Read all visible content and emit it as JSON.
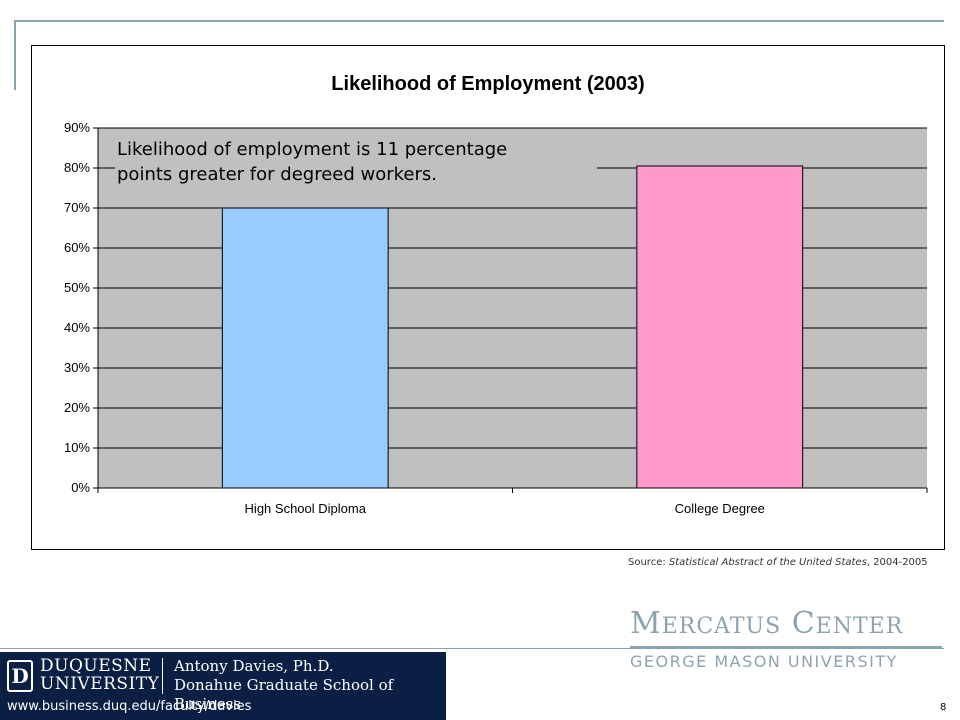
{
  "chart_data": {
    "type": "bar",
    "title": "Likelihood of Employment (2003)",
    "categories": [
      "High School Diploma",
      "College Degree"
    ],
    "values": [
      0.7,
      0.805
    ],
    "colors": [
      "#99ccff",
      "#ff99cc"
    ],
    "plot_background": "#c0c0c0",
    "ylim": [
      0,
      0.9
    ],
    "yticks": [
      0,
      0.1,
      0.2,
      0.3,
      0.4,
      0.5,
      0.6,
      0.7,
      0.8,
      0.9
    ],
    "ytick_labels": [
      "0%",
      "10%",
      "20%",
      "30%",
      "40%",
      "50%",
      "60%",
      "70%",
      "80%",
      "90%"
    ],
    "grid": true,
    "legend": "none",
    "annotation_lines": [
      "Likelihood of employment is 11 percentage",
      "points greater for degreed workers."
    ]
  },
  "source": {
    "label": "Source:",
    "citation": "Statistical Abstract of the United States",
    "years": ", 2004-2005"
  },
  "mercatus": {
    "m_initial": "M",
    "m_rest": "ERCATUS",
    "c_initial": "C",
    "c_rest": "ENTER",
    "university": "GEORGE MASON UNIVERSITY"
  },
  "duquesne": {
    "logo_letter": "D",
    "name_line1": "DUQUESNE",
    "name_line2": "UNIVERSITY",
    "author": "Antony Davies, Ph.D.",
    "school": "Donahue Graduate School of Business",
    "url": "www.business.duq.edu/faculty/davies"
  },
  "page_number": "8"
}
